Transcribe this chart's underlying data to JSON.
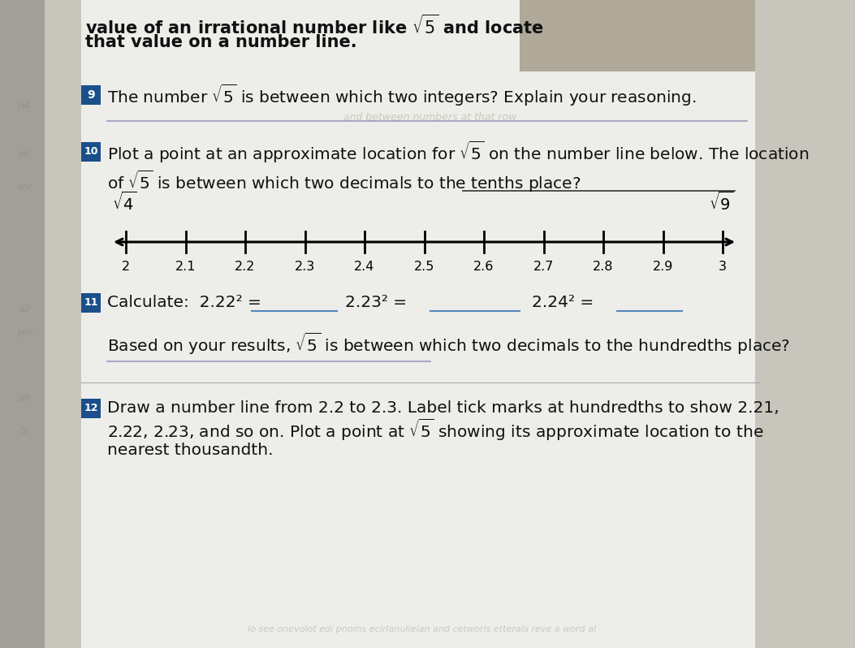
{
  "bg_color": "#c8c5bc",
  "page_bg": "#f0eeea",
  "left_margin_color": "#b8b5ac",
  "right_strip_color": "#c0bdb4",
  "title_line1": "value of an irrational number like $\\sqrt{5}$ and locate",
  "title_line2": "that value on a number line.",
  "q9_text": "The number $\\sqrt{5}$ is between which two integers? Explain your reasoning.",
  "q10_line1": "Plot a point at an approximate location for $\\sqrt{5}$ on the number line below. The location",
  "q10_line2": "of $\\sqrt{5}$ is between which two decimals to the tenths place?",
  "numberline_ticks": [
    2.0,
    2.1,
    2.2,
    2.3,
    2.4,
    2.5,
    2.6,
    2.7,
    2.8,
    2.9,
    3.0
  ],
  "numberline_labels": [
    "2",
    "2.1",
    "2.2",
    "2.3",
    "2.4",
    "2.5",
    "2.6",
    "2.7",
    "2.8",
    "2.9",
    "3"
  ],
  "sqrt4_label": "$\\sqrt{4}$",
  "sqrt9_label": "$\\sqrt{9}$",
  "q11_part1": "Calculate:  2.22",
  "q11_part2": "2.23",
  "q11_part3": "2.24",
  "q11b_text": "Based on your results, $\\sqrt{5}$ is between which two decimals to the hundredths place?",
  "q12_line1": "Draw a number line from 2.2 to 2.3. Label tick marks at hundredths to show 2.21,",
  "q12_line2": "2.22, 2.23, and so on. Plot a point at $\\sqrt{5}$ showing its approximate location to the",
  "q12_line3": "nearest thousandth.",
  "answer_line_color": "#8888aa",
  "text_color": "#111111",
  "num_badge_color": "#1a4f8a",
  "blank_line_color": "#5588bb",
  "font_size_body": 14.5,
  "font_size_axis": 11.5,
  "font_size_title": 15
}
